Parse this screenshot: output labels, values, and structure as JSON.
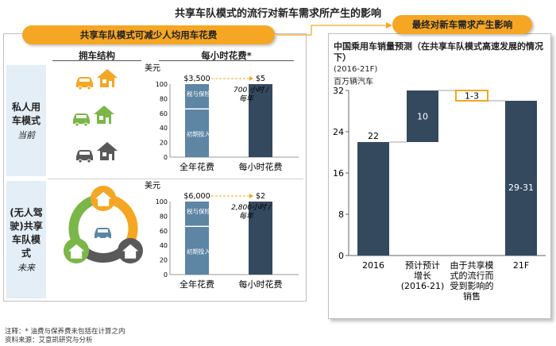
{
  "title": "共享车队模式的流行对新车需求所产生的影响",
  "left_panel": {
    "header": "共享车队模式可减少人均用车花费",
    "col_headers": {
      "ownership": "拥车结构",
      "hourly": "每小时花费*"
    },
    "rows": [
      {
        "label": "私人用车模式",
        "sub": "当前"
      },
      {
        "label": "(无人驾驶)共享车队模式",
        "sub": "未来"
      }
    ]
  },
  "right_panel": {
    "header": "最终对新车需求产生影响"
  },
  "colors": {
    "orange": "#f5a623",
    "green": "#7ab648",
    "dark_gray": "#595959",
    "navy": "#34495e",
    "steel": "#5d85a4",
    "light_blue_bg": "#e3eef6"
  },
  "chart_data": [
    {
      "type": "bar",
      "unit": "美元",
      "categories": [
        "全年花费",
        "每小时花费"
      ],
      "top_labels": [
        "$3,500",
        "$5"
      ],
      "stack_labels": [
        "税与保险",
        "初期投入"
      ],
      "annotation": "700 小时 / 每年",
      "yticks": [
        0,
        20,
        40,
        60,
        80,
        100
      ],
      "ylim": [
        0,
        100
      ]
    },
    {
      "type": "bar",
      "unit": "美元",
      "categories": [
        "全年花费",
        "每小时花费"
      ],
      "top_labels": [
        "$6,000",
        "$2"
      ],
      "stack_labels": [
        "税与保险",
        "初期投入"
      ],
      "annotation": "2,800小时 / 每年",
      "yticks": [
        0,
        20,
        40,
        60,
        80,
        100
      ],
      "ylim": [
        0,
        100
      ]
    },
    {
      "type": "waterfall",
      "title": "中国乘用车销量预测（在共享车队模式高速发展的情况下）",
      "subtitle": "(2016-21F)",
      "unit": "百万辆汽车",
      "yticks": [
        0,
        8,
        16,
        24,
        32
      ],
      "ylim": [
        0,
        32
      ],
      "categories": [
        "2016",
        "预计预计增长(2016-21)",
        "由于共享模式的流行而受到影响的销售",
        "21F"
      ],
      "category_lines": [
        [
          "2016"
        ],
        [
          "预计预计",
          "增长",
          "(2016-21)"
        ],
        [
          "由于共享模",
          "式的流行而",
          "受到影响的",
          "销售"
        ],
        [
          "21F"
        ]
      ],
      "values": [
        22,
        10,
        -2,
        30
      ],
      "labels": [
        "22",
        "10",
        "1-3",
        "29-31"
      ]
    }
  ],
  "footnotes": [
    "注释：* 油费与保养费未包括在计算之内",
    "资料来源：艾意凯研究与分析"
  ]
}
